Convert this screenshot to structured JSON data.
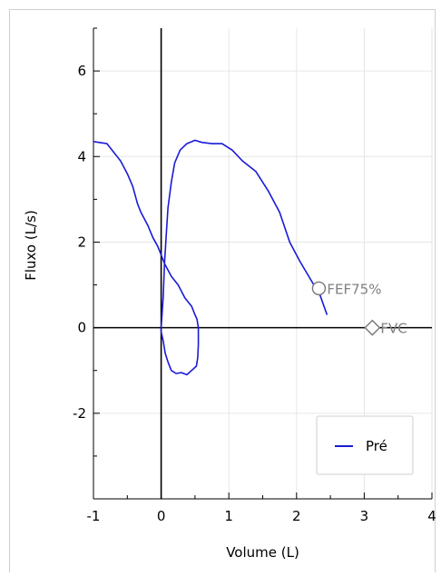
{
  "chart_data": {
    "type": "line",
    "xlabel": "Volume (L)",
    "ylabel": "Fluxo (L/s)",
    "xlim": [
      -1,
      4
    ],
    "ylim": [
      -4,
      7
    ],
    "x_major_ticks": [
      -1,
      0,
      1,
      2,
      3,
      4
    ],
    "y_major_ticks": [
      -2,
      0,
      2,
      4,
      6
    ],
    "x_tick_labels": [
      "-1",
      "0",
      "1",
      "2",
      "3",
      "4"
    ],
    "y_tick_labels": [
      "-2",
      "0",
      "2",
      "4",
      "6"
    ],
    "grid": true,
    "legend_position": "bottom-right",
    "legend": [
      {
        "name": "Pré",
        "color": "#1a1ad6"
      }
    ],
    "series": [
      {
        "name": "Pré",
        "color": "#1a1ad6",
        "segments": [
          {
            "x": [
              -1.0,
              -0.8,
              -0.7,
              -0.6,
              -0.5,
              -0.42,
              -0.35,
              -0.3,
              -0.2,
              -0.12,
              -0.05,
              0.0,
              0.05,
              0.15,
              0.25,
              0.35,
              0.45,
              0.5,
              0.53,
              0.55,
              0.55,
              0.54,
              0.52,
              0.45,
              0.38,
              0.3,
              0.22,
              0.15,
              0.1,
              0.06,
              0.03,
              0.0,
              0.0
            ],
            "y": [
              4.35,
              4.3,
              4.1,
              3.9,
              3.6,
              3.3,
              2.9,
              2.7,
              2.4,
              2.1,
              1.9,
              1.7,
              1.5,
              1.2,
              1.0,
              0.7,
              0.5,
              0.3,
              0.2,
              0.0,
              -0.4,
              -0.7,
              -0.9,
              -1.0,
              -1.1,
              -1.05,
              -1.07,
              -1.0,
              -0.8,
              -0.6,
              -0.3,
              -0.1,
              0.0
            ]
          },
          {
            "x": [
              0.0,
              0.03,
              0.05,
              0.08,
              0.1,
              0.15,
              0.2,
              0.28,
              0.38,
              0.5,
              0.6,
              0.75,
              0.9,
              1.05,
              1.2,
              1.4,
              1.58,
              1.75,
              1.9,
              2.05,
              2.2,
              2.35,
              2.45
            ],
            "y": [
              0.0,
              0.7,
              1.5,
              2.3,
              2.8,
              3.4,
              3.85,
              4.15,
              4.3,
              4.38,
              4.33,
              4.3,
              4.3,
              4.15,
              3.9,
              3.65,
              3.2,
              2.7,
              2.0,
              1.55,
              1.15,
              0.75,
              0.3
            ]
          }
        ]
      }
    ],
    "markers": [
      {
        "label": "FEF75%",
        "x": 2.33,
        "y": 0.92,
        "shape": "circle"
      },
      {
        "label": "FVC",
        "x": 3.12,
        "y": 0.0,
        "shape": "diamond"
      }
    ]
  }
}
